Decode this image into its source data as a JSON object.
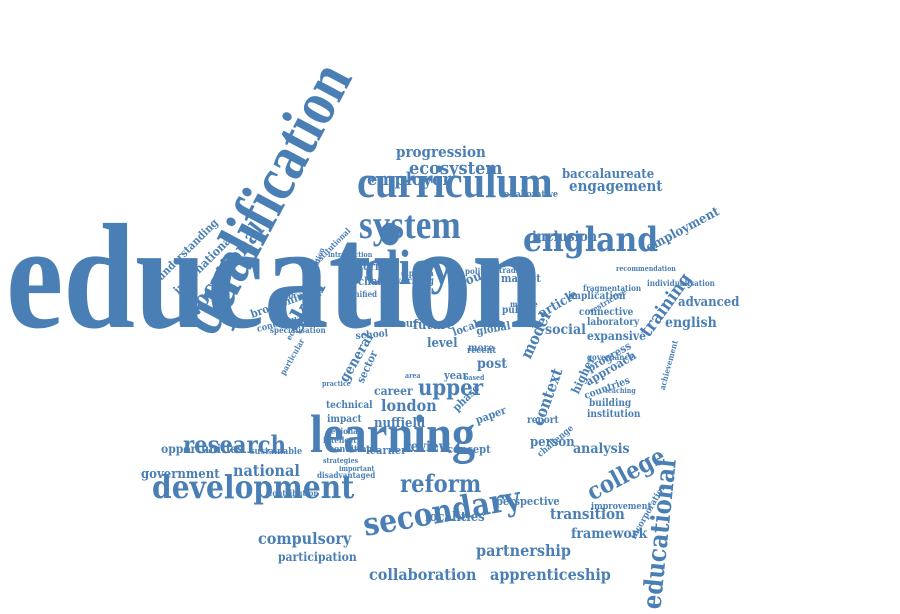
{
  "colors": {
    "word": "#4a7fb5",
    "background": "#ffffff"
  },
  "words": [
    {
      "id": "education",
      "text": "education"
    },
    {
      "id": "qualification",
      "text": "qualification"
    },
    {
      "id": "curriculum",
      "text": "curriculum"
    },
    {
      "id": "system",
      "text": "system"
    },
    {
      "id": "policy",
      "text": "policy"
    },
    {
      "id": "england",
      "text": "england"
    },
    {
      "id": "learning",
      "text": "learning"
    },
    {
      "id": "development",
      "text": "development"
    },
    {
      "id": "secondary",
      "text": "secondary"
    },
    {
      "id": "research",
      "text": "research"
    },
    {
      "id": "reform",
      "text": "reform"
    },
    {
      "id": "college",
      "text": "college"
    },
    {
      "id": "educational",
      "text": "educational"
    },
    {
      "id": "vocational",
      "text": "vocational"
    },
    {
      "id": "skill",
      "text": "skill"
    },
    {
      "id": "ecosystem",
      "text": "ecosystem"
    },
    {
      "id": "employer",
      "text": "employer"
    },
    {
      "id": "progression",
      "text": "progression"
    },
    {
      "id": "baccalaureate",
      "text": "baccalaureate"
    },
    {
      "id": "engagement",
      "text": "engagement"
    },
    {
      "id": "collaborative",
      "text": "collaborative"
    },
    {
      "id": "inclusion",
      "text": "inclusion"
    },
    {
      "id": "employment",
      "text": "employment"
    },
    {
      "id": "training",
      "text": "training"
    },
    {
      "id": "advanced",
      "text": "advanced"
    },
    {
      "id": "english",
      "text": "english"
    },
    {
      "id": "understanding",
      "text": "understanding"
    },
    {
      "id": "international",
      "text": "international"
    },
    {
      "id": "institutional",
      "text": "institutional"
    },
    {
      "id": "broadening",
      "text": "broadening"
    },
    {
      "id": "unification",
      "text": "unification"
    },
    {
      "id": "specialisation",
      "text": "specialisation"
    },
    {
      "id": "conceptual",
      "text": "conceptual"
    },
    {
      "id": "historical",
      "text": "historical"
    },
    {
      "id": "change",
      "text": "change"
    },
    {
      "id": "working",
      "text": "working"
    },
    {
      "id": "labour",
      "text": "labour"
    },
    {
      "id": "future",
      "text": "future"
    },
    {
      "id": "local",
      "text": "local"
    },
    {
      "id": "global",
      "text": "global"
    },
    {
      "id": "school",
      "text": "school"
    },
    {
      "id": "level",
      "text": "level"
    },
    {
      "id": "young",
      "text": "young"
    },
    {
      "id": "market",
      "text": "market"
    },
    {
      "id": "public",
      "text": "public"
    },
    {
      "id": "political",
      "text": "political"
    },
    {
      "id": "article",
      "text": "article"
    },
    {
      "id": "social",
      "text": "social"
    },
    {
      "id": "implication",
      "text": "implication"
    },
    {
      "id": "fragmentation",
      "text": "fragmentation"
    },
    {
      "id": "individualisation",
      "text": "individualisation"
    },
    {
      "id": "laboratory",
      "text": "laboratory"
    },
    {
      "id": "expansive",
      "text": "expansive"
    },
    {
      "id": "connective",
      "text": "connective"
    },
    {
      "id": "restrictive",
      "text": "restrictive"
    },
    {
      "id": "model",
      "text": "model"
    },
    {
      "id": "post",
      "text": "post"
    },
    {
      "id": "general",
      "text": "general"
    },
    {
      "id": "recent",
      "text": "recent"
    },
    {
      "id": "more",
      "text": "more"
    },
    {
      "id": "upper",
      "text": "upper"
    },
    {
      "id": "career",
      "text": "career"
    },
    {
      "id": "london",
      "text": "london"
    },
    {
      "id": "nuffield",
      "text": "nuffield"
    },
    {
      "id": "sector",
      "text": "sector"
    },
    {
      "id": "context",
      "text": "context"
    },
    {
      "id": "higher",
      "text": "higher"
    },
    {
      "id": "phase",
      "text": "phase"
    },
    {
      "id": "paper",
      "text": "paper"
    },
    {
      "id": "report",
      "text": "report"
    },
    {
      "id": "person",
      "text": "person"
    },
    {
      "id": "approach",
      "text": "approach"
    },
    {
      "id": "progress",
      "text": "progress"
    },
    {
      "id": "governance",
      "text": "governance"
    },
    {
      "id": "countries",
      "text": "countries"
    },
    {
      "id": "building",
      "text": "building"
    },
    {
      "id": "institution",
      "text": "institution"
    },
    {
      "id": "achievement",
      "text": "achievement"
    },
    {
      "id": "teaching",
      "text": "teaching"
    },
    {
      "id": "technical",
      "text": "technical"
    },
    {
      "id": "impact",
      "text": "impact"
    },
    {
      "id": "regional",
      "text": "regional"
    },
    {
      "id": "intellect",
      "text": "intellect"
    },
    {
      "id": "condition",
      "text": "condition"
    },
    {
      "id": "learner",
      "text": "learner"
    },
    {
      "id": "review",
      "text": "review"
    },
    {
      "id": "concept",
      "text": "concept"
    },
    {
      "id": "challenge",
      "text": "challenge"
    },
    {
      "id": "analysis",
      "text": "analysis"
    },
    {
      "id": "opportunities",
      "text": "opportunities"
    },
    {
      "id": "sustainable",
      "text": "sustainable"
    },
    {
      "id": "government",
      "text": "government"
    },
    {
      "id": "national",
      "text": "national"
    },
    {
      "id": "contribution",
      "text": "contribution"
    },
    {
      "id": "perspective",
      "text": "perspective"
    },
    {
      "id": "localities",
      "text": "localities"
    },
    {
      "id": "transition",
      "text": "transition"
    },
    {
      "id": "improvement",
      "text": "improvement"
    },
    {
      "id": "incorporation",
      "text": "incorporation"
    },
    {
      "id": "framework",
      "text": "framework"
    },
    {
      "id": "compulsory",
      "text": "compulsory"
    },
    {
      "id": "participation",
      "text": "participation"
    },
    {
      "id": "partnership",
      "text": "partnership"
    },
    {
      "id": "collaboration",
      "text": "collaboration"
    },
    {
      "id": "apprenticeship",
      "text": "apprenticeship"
    },
    {
      "id": "year",
      "text": "year"
    },
    {
      "id": "area",
      "text": "area"
    },
    {
      "id": "based",
      "text": "based"
    },
    {
      "id": "middle",
      "text": "middle"
    },
    {
      "id": "diploma",
      "text": "diploma"
    },
    {
      "id": "tradition",
      "text": "tradition"
    },
    {
      "id": "introduction",
      "text": "introduction"
    },
    {
      "id": "recommendation",
      "text": "recommendation"
    },
    {
      "id": "formation",
      "text": "formation"
    },
    {
      "id": "economic",
      "text": "economic"
    },
    {
      "id": "particular",
      "text": "particular"
    },
    {
      "id": "practice",
      "text": "practice"
    },
    {
      "id": "strategies",
      "text": "strategies"
    },
    {
      "id": "important",
      "text": "important"
    },
    {
      "id": "disadvantaged",
      "text": "disadvantaged"
    },
    {
      "id": "unified",
      "text": "unified"
    }
  ]
}
